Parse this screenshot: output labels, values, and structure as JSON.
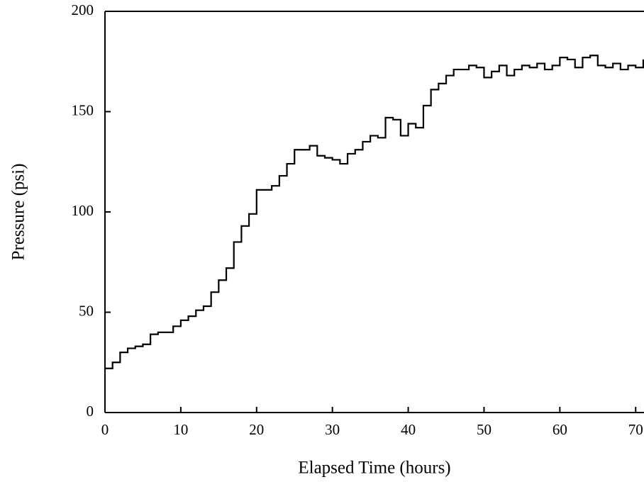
{
  "chart_data": {
    "type": "line",
    "step": true,
    "xlabel": "Elapsed Time (hours)",
    "ylabel": "Pressure (psi)",
    "x": [
      0,
      1,
      2,
      3,
      4,
      5,
      6,
      7,
      8,
      9,
      10,
      11,
      12,
      13,
      14,
      15,
      16,
      17,
      18,
      19,
      20,
      21,
      22,
      23,
      24,
      25,
      26,
      27,
      28,
      29,
      30,
      31,
      32,
      33,
      34,
      35,
      36,
      37,
      38,
      39,
      40,
      41,
      42,
      43,
      44,
      45,
      46,
      47,
      48,
      49,
      50,
      51,
      52,
      53,
      54,
      55,
      56,
      57,
      58,
      59,
      60,
      61,
      62,
      63,
      64,
      65,
      66,
      67,
      68,
      69,
      70,
      71
    ],
    "series": [
      {
        "color": "#000000",
        "values": [
          22,
          25,
          30,
          32,
          33,
          34,
          39,
          40,
          40,
          43,
          46,
          48,
          51,
          53,
          60,
          66,
          72,
          85,
          93,
          99,
          111,
          111,
          113,
          118,
          124,
          131,
          131,
          133,
          128,
          127,
          126,
          124,
          129,
          131,
          135,
          138,
          137,
          147,
          146,
          138,
          144,
          142,
          153,
          161,
          164,
          168,
          171,
          171,
          173,
          172,
          167,
          170,
          173,
          168,
          171,
          173,
          172,
          174,
          171,
          173,
          177,
          176,
          172,
          177,
          178,
          173,
          172,
          174,
          171,
          173,
          172,
          176
        ]
      }
    ],
    "xlim": [
      0,
      71.1
    ],
    "xticks": [
      0,
      10,
      20,
      30,
      40,
      50,
      60,
      70
    ],
    "ylim": [
      0,
      200
    ],
    "yticks": [
      0,
      50,
      100,
      150,
      200
    ],
    "grid": false
  }
}
